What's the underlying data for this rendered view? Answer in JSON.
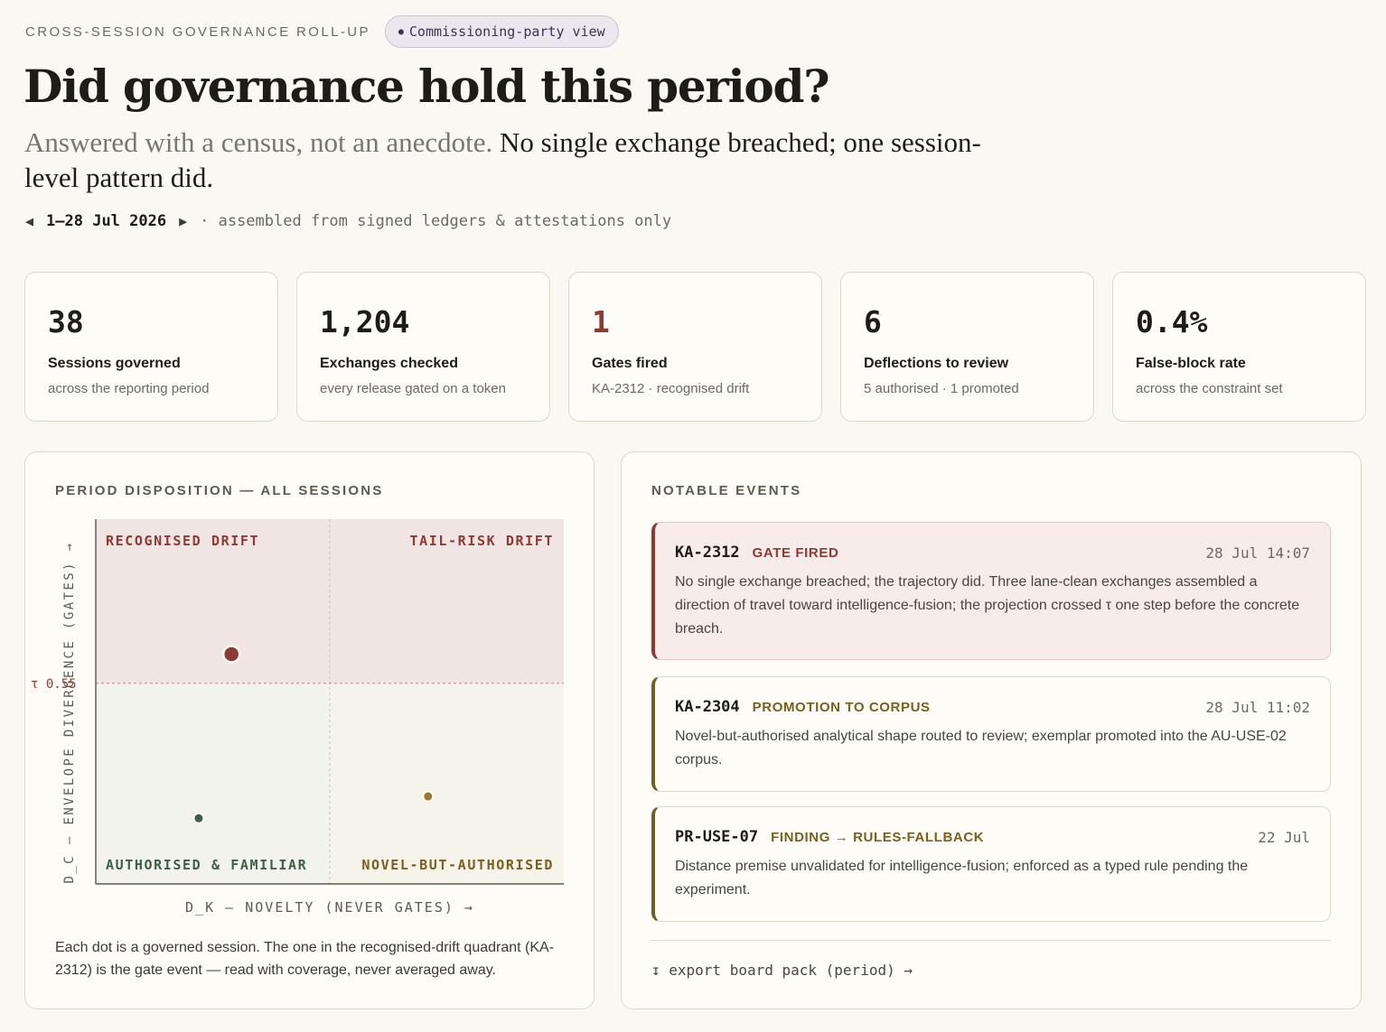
{
  "header": {
    "eyebrow": "CROSS-SESSION GOVERNANCE ROLL-UP",
    "view_pill": "Commissioning-party view",
    "title": "Did governance hold this period?",
    "subtitle_muted": "Answered with a census, not an anecdote.",
    "subtitle_main": " No single exchange breached; one session-level pattern did.",
    "period_prev": "◀",
    "period_range": "1–28 Jul 2026",
    "period_next": "▶",
    "period_note": "· assembled from signed ledgers & attestations only"
  },
  "kpis": [
    {
      "value": "38",
      "label": "Sessions governed",
      "sub": "across the reporting period"
    },
    {
      "value": "1,204",
      "label": "Exchanges checked",
      "sub": "every release gated on a token"
    },
    {
      "value": "1",
      "label": "Gates fired",
      "sub": "KA-2312 · recognised drift"
    },
    {
      "value": "6",
      "label": "Deflections to review",
      "sub": "5 authorised · 1 promoted"
    },
    {
      "value": "0.4%",
      "label": "False-block rate",
      "sub": "across the constraint set"
    }
  ],
  "disposition": {
    "heading": "PERIOD DISPOSITION — ALL SESSIONS",
    "caption": "Each dot is a governed session. The one in the recognised-drift quadrant (KA-2312) is the gate event — read with coverage, never averaged away."
  },
  "chart_data": {
    "type": "scatter",
    "xlabel": "D_K — NOVELTY (NEVER GATES) →",
    "ylabel": "D_C — ENVELOPE DIVERGENCE (GATES) →",
    "xlim": [
      0,
      1
    ],
    "ylim": [
      0,
      1
    ],
    "threshold_label": "τ 0.55",
    "threshold_y": 0.55,
    "x_split": 0.5,
    "quadrants": {
      "top_left": "RECOGNISED DRIFT",
      "top_right": "TAIL-RISK DRIFT",
      "bottom_left": "AUTHORISED & FAMILIAR",
      "bottom_right": "NOVEL-BUT-AUTHORISED"
    },
    "points": [
      {
        "x": 0.29,
        "y": 0.63,
        "quadrant": "recognised-drift",
        "color": "#8e3a33",
        "size": "large"
      },
      {
        "x": 0.22,
        "y": 0.18,
        "quadrant": "authorised-familiar",
        "color": "#3f5e48",
        "size": "small"
      },
      {
        "x": 0.71,
        "y": 0.24,
        "quadrant": "novel-but-authorised",
        "color": "#9a7a2c",
        "size": "small"
      }
    ],
    "colors": {
      "drift_bg": "#f1e5e3",
      "familiar_bg": "#f2f3ed",
      "novel_bg": "#f6f3ea",
      "drift_text": "#8e3a33",
      "familiar_text": "#3f5e48",
      "novel_text": "#7a5f1e"
    }
  },
  "events": {
    "heading": "NOTABLE EVENTS",
    "items": [
      {
        "id": "KA-2312",
        "tag": "GATE FIRED",
        "time": "28 Jul 14:07",
        "body": "No single exchange breached; the trajectory did. Three lane-clean exchanges assembled a direction of travel toward intelligence-fusion; the projection crossed τ one step before the concrete breach."
      },
      {
        "id": "KA-2304",
        "tag": "PROMOTION TO CORPUS",
        "time": "28 Jul 11:02",
        "body": "Novel-but-authorised analytical shape routed to review; exemplar promoted into the AU-USE-02 corpus."
      },
      {
        "id": "PR-USE-07",
        "tag": "FINDING → RULES-FALLBACK",
        "time": "22 Jul",
        "body": "Distance premise unvalidated for intelligence-fusion; enforced as a typed rule pending the experiment."
      }
    ],
    "export_label": "↧ export board pack (period) →"
  }
}
